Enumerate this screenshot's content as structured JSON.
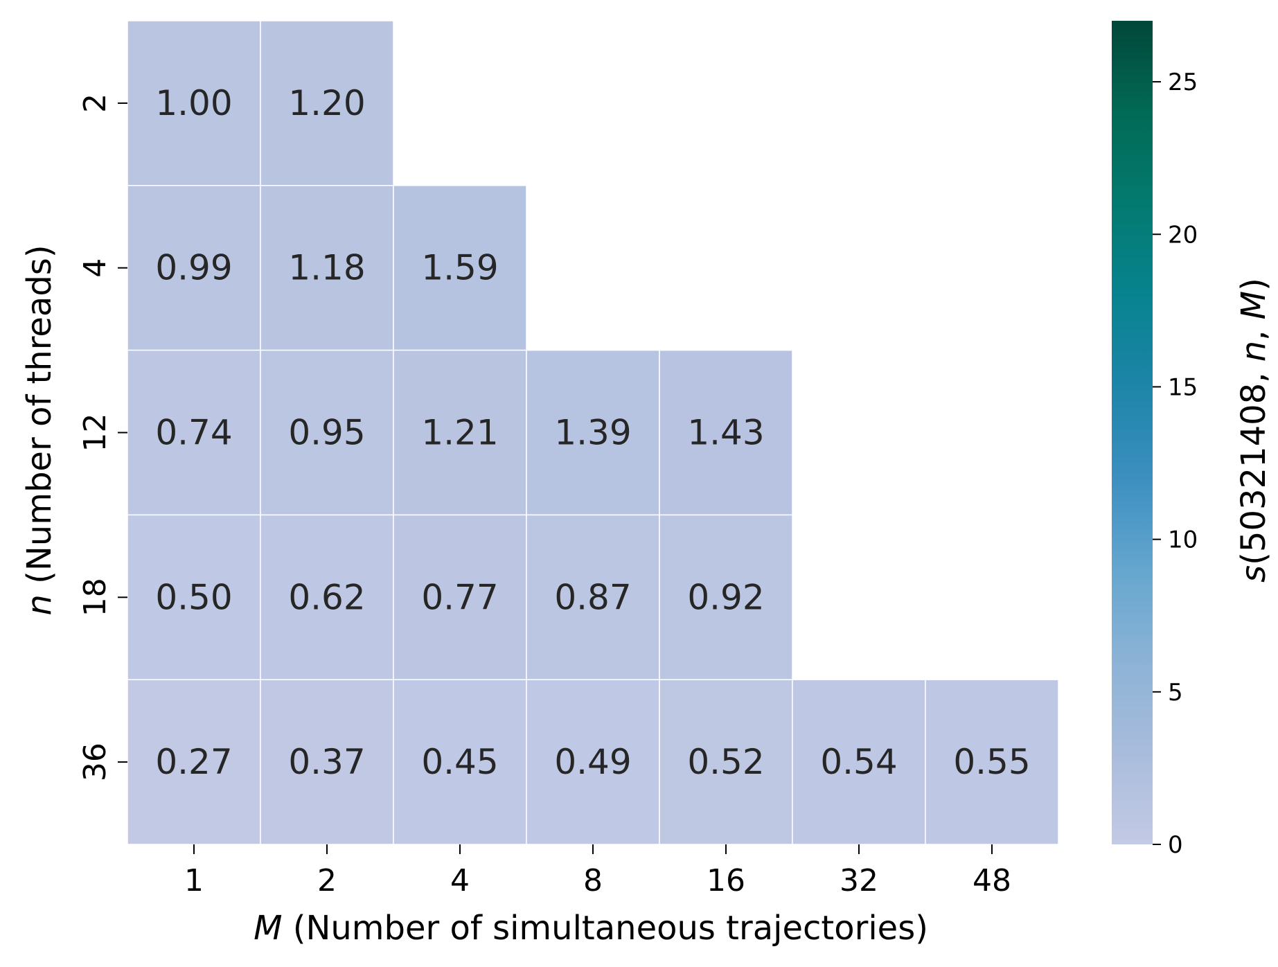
{
  "chart_data": {
    "type": "heatmap",
    "x_categories": [
      "1",
      "2",
      "4",
      "8",
      "16",
      "32",
      "48"
    ],
    "y_categories": [
      "2",
      "4",
      "12",
      "18",
      "36"
    ],
    "values": [
      [
        1.0,
        1.2,
        null,
        null,
        null,
        null,
        null
      ],
      [
        0.99,
        1.18,
        1.59,
        null,
        null,
        null,
        null
      ],
      [
        0.74,
        0.95,
        1.21,
        1.39,
        1.43,
        null,
        null
      ],
      [
        0.5,
        0.62,
        0.77,
        0.87,
        0.92,
        null,
        null
      ],
      [
        0.27,
        0.37,
        0.45,
        0.49,
        0.52,
        0.54,
        0.55
      ]
    ],
    "value_format": "2 decimals",
    "xlabel": {
      "var": "M",
      "text": " (Number of simultaneous trajectories)"
    },
    "ylabel": {
      "var": "n",
      "text": " (Number of threads)"
    },
    "colorbar": {
      "label": {
        "fn": "s",
        "args_plain": "(50321408, ",
        "var1": "n",
        "sep": ", ",
        "var2": "M",
        "close": ")"
      },
      "range": [
        0,
        27
      ],
      "ticks": [
        "0",
        "5",
        "10",
        "15",
        "20",
        "25"
      ],
      "colormap_stops": [
        "#c3cae5",
        "#a9bcdc",
        "#8cb3d6",
        "#65a6cf",
        "#3c8fc0",
        "#1d85a8",
        "#07838f",
        "#037a70",
        "#026a55",
        "#014739"
      ]
    },
    "grid": false,
    "legend": "colorbar-right",
    "cell_border_color": "#ffffff"
  }
}
